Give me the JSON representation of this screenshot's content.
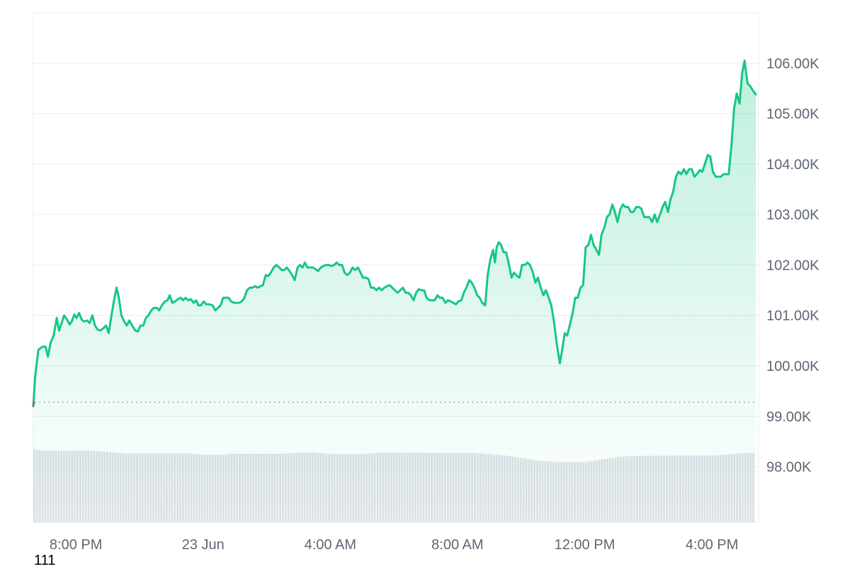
{
  "chart_data": {
    "type": "area",
    "x_ticks": [
      "8:00 PM",
      "23 Jun",
      "4:00 AM",
      "8:00 AM",
      "12:00 PM",
      "4:00 PM"
    ],
    "y_ticks": [
      "98.00K",
      "99.00K",
      "100.00K",
      "101.00K",
      "102.00K",
      "103.00K",
      "104.00K",
      "105.00K",
      "106.00K"
    ],
    "ylim": [
      96.9,
      107.0
    ],
    "baseline": 99.28,
    "grid": true,
    "colors": {
      "line": "#16c784",
      "line_below_baseline": "#ea3943",
      "fill": "#16c784",
      "volume": "#dde1e7",
      "grid": "#e8ebef",
      "baseline": "#8a919e"
    },
    "series": [
      {
        "values": [
          [
            18.66,
            99.2
          ],
          [
            18.72,
            99.8
          ],
          [
            18.82,
            100.32
          ],
          [
            18.95,
            100.38
          ],
          [
            19.05,
            100.38
          ],
          [
            19.12,
            100.18
          ],
          [
            19.2,
            100.45
          ],
          [
            19.3,
            100.6
          ],
          [
            19.4,
            100.95
          ],
          [
            19.47,
            100.7
          ],
          [
            19.55,
            100.85
          ],
          [
            19.63,
            101.0
          ],
          [
            19.72,
            100.92
          ],
          [
            19.8,
            100.82
          ],
          [
            19.87,
            100.88
          ],
          [
            19.95,
            101.02
          ],
          [
            20.02,
            100.95
          ],
          [
            20.1,
            101.05
          ],
          [
            20.18,
            100.92
          ],
          [
            20.25,
            100.88
          ],
          [
            20.35,
            100.9
          ],
          [
            20.43,
            100.85
          ],
          [
            20.52,
            101.0
          ],
          [
            20.6,
            100.8
          ],
          [
            20.68,
            100.72
          ],
          [
            20.77,
            100.7
          ],
          [
            20.87,
            100.75
          ],
          [
            20.95,
            100.8
          ],
          [
            21.03,
            100.65
          ],
          [
            21.12,
            101.0
          ],
          [
            21.2,
            101.3
          ],
          [
            21.28,
            101.55
          ],
          [
            21.35,
            101.35
          ],
          [
            21.43,
            101.0
          ],
          [
            21.52,
            100.88
          ],
          [
            21.6,
            100.8
          ],
          [
            21.68,
            100.9
          ],
          [
            21.77,
            100.8
          ],
          [
            21.87,
            100.7
          ],
          [
            21.95,
            100.68
          ],
          [
            22.03,
            100.8
          ],
          [
            22.12,
            100.8
          ],
          [
            22.2,
            100.95
          ],
          [
            22.28,
            101.0
          ],
          [
            22.37,
            101.1
          ],
          [
            22.45,
            101.15
          ],
          [
            22.55,
            101.15
          ],
          [
            22.62,
            101.1
          ],
          [
            22.7,
            101.2
          ],
          [
            22.8,
            101.28
          ],
          [
            22.88,
            101.3
          ],
          [
            22.95,
            101.4
          ],
          [
            23.03,
            101.25
          ],
          [
            23.12,
            101.28
          ],
          [
            23.2,
            101.32
          ],
          [
            23.3,
            101.35
          ],
          [
            23.37,
            101.3
          ],
          [
            23.45,
            101.35
          ],
          [
            23.53,
            101.3
          ],
          [
            23.62,
            101.32
          ],
          [
            23.7,
            101.25
          ],
          [
            23.78,
            101.3
          ],
          [
            23.85,
            101.2
          ],
          [
            23.93,
            101.2
          ],
          [
            24.02,
            101.28
          ],
          [
            24.1,
            101.22
          ],
          [
            24.2,
            101.22
          ],
          [
            24.3,
            101.2
          ],
          [
            24.38,
            101.1
          ],
          [
            24.47,
            101.15
          ],
          [
            24.55,
            101.2
          ],
          [
            24.63,
            101.35
          ],
          [
            24.72,
            101.35
          ],
          [
            24.8,
            101.35
          ],
          [
            24.88,
            101.28
          ],
          [
            24.97,
            101.25
          ],
          [
            25.05,
            101.25
          ],
          [
            25.13,
            101.25
          ],
          [
            25.22,
            101.28
          ],
          [
            25.3,
            101.35
          ],
          [
            25.38,
            101.5
          ],
          [
            25.47,
            101.55
          ],
          [
            25.55,
            101.55
          ],
          [
            25.63,
            101.58
          ],
          [
            25.72,
            101.55
          ],
          [
            25.8,
            101.58
          ],
          [
            25.88,
            101.6
          ],
          [
            25.97,
            101.8
          ],
          [
            26.05,
            101.78
          ],
          [
            26.13,
            101.85
          ],
          [
            26.22,
            101.95
          ],
          [
            26.3,
            102.0
          ],
          [
            26.4,
            101.95
          ],
          [
            26.47,
            101.9
          ],
          [
            26.55,
            101.9
          ],
          [
            26.63,
            101.95
          ],
          [
            26.72,
            101.88
          ],
          [
            26.8,
            101.8
          ],
          [
            26.88,
            101.7
          ],
          [
            26.97,
            101.95
          ],
          [
            27.05,
            102.0
          ],
          [
            27.13,
            101.95
          ],
          [
            27.2,
            102.05
          ],
          [
            27.28,
            101.95
          ],
          [
            27.37,
            101.95
          ],
          [
            27.45,
            101.95
          ],
          [
            27.53,
            101.92
          ],
          [
            27.62,
            101.88
          ],
          [
            27.7,
            101.95
          ],
          [
            27.78,
            101.98
          ],
          [
            27.87,
            102.0
          ],
          [
            27.95,
            102.0
          ],
          [
            28.03,
            101.98
          ],
          [
            28.12,
            102.0
          ],
          [
            28.2,
            102.05
          ],
          [
            28.28,
            102.0
          ],
          [
            28.37,
            102.0
          ],
          [
            28.45,
            101.85
          ],
          [
            28.53,
            101.8
          ],
          [
            28.62,
            101.85
          ],
          [
            28.7,
            101.95
          ],
          [
            28.78,
            101.9
          ],
          [
            28.87,
            101.95
          ],
          [
            28.95,
            101.85
          ],
          [
            29.03,
            101.75
          ],
          [
            29.12,
            101.75
          ],
          [
            29.2,
            101.72
          ],
          [
            29.28,
            101.55
          ],
          [
            29.37,
            101.55
          ],
          [
            29.45,
            101.5
          ],
          [
            29.53,
            101.55
          ],
          [
            29.62,
            101.5
          ],
          [
            29.7,
            101.55
          ],
          [
            29.78,
            101.58
          ],
          [
            29.87,
            101.6
          ],
          [
            29.95,
            101.55
          ],
          [
            30.03,
            101.5
          ],
          [
            30.12,
            101.45
          ],
          [
            30.2,
            101.5
          ],
          [
            30.28,
            101.55
          ],
          [
            30.37,
            101.45
          ],
          [
            30.45,
            101.45
          ],
          [
            30.53,
            101.4
          ],
          [
            30.62,
            101.3
          ],
          [
            30.7,
            101.45
          ],
          [
            30.78,
            101.52
          ],
          [
            30.87,
            101.5
          ],
          [
            30.95,
            101.5
          ],
          [
            31.03,
            101.35
          ],
          [
            31.12,
            101.3
          ],
          [
            31.2,
            101.3
          ],
          [
            31.28,
            101.3
          ],
          [
            31.37,
            101.4
          ],
          [
            31.45,
            101.35
          ],
          [
            31.53,
            101.35
          ],
          [
            31.62,
            101.25
          ],
          [
            31.7,
            101.3
          ],
          [
            31.78,
            101.28
          ],
          [
            31.87,
            101.25
          ],
          [
            31.95,
            101.22
          ],
          [
            32.03,
            101.28
          ],
          [
            32.12,
            101.3
          ],
          [
            32.2,
            101.45
          ],
          [
            32.28,
            101.55
          ],
          [
            32.37,
            101.7
          ],
          [
            32.45,
            101.65
          ],
          [
            32.53,
            101.55
          ],
          [
            32.62,
            101.4
          ],
          [
            32.7,
            101.35
          ],
          [
            32.78,
            101.25
          ],
          [
            32.87,
            101.2
          ],
          [
            32.95,
            101.8
          ],
          [
            33.03,
            102.1
          ],
          [
            33.12,
            102.3
          ],
          [
            33.18,
            102.05
          ],
          [
            33.23,
            102.35
          ],
          [
            33.3,
            102.45
          ],
          [
            33.37,
            102.4
          ],
          [
            33.45,
            102.25
          ],
          [
            33.53,
            102.25
          ],
          [
            33.62,
            102.0
          ],
          [
            33.7,
            101.75
          ],
          [
            33.78,
            101.85
          ],
          [
            33.87,
            101.78
          ],
          [
            33.95,
            101.75
          ],
          [
            34.03,
            102.0
          ],
          [
            34.12,
            102.0
          ],
          [
            34.2,
            102.05
          ],
          [
            34.28,
            102.0
          ],
          [
            34.37,
            101.85
          ],
          [
            34.45,
            101.65
          ],
          [
            34.53,
            101.75
          ],
          [
            34.62,
            101.55
          ],
          [
            34.7,
            101.4
          ],
          [
            34.78,
            101.5
          ],
          [
            34.87,
            101.35
          ],
          [
            34.95,
            101.2
          ],
          [
            35.03,
            100.9
          ],
          [
            35.12,
            100.45
          ],
          [
            35.22,
            100.05
          ],
          [
            35.3,
            100.35
          ],
          [
            35.37,
            100.65
          ],
          [
            35.45,
            100.6
          ],
          [
            35.55,
            100.85
          ],
          [
            35.62,
            101.05
          ],
          [
            35.7,
            101.35
          ],
          [
            35.78,
            101.35
          ],
          [
            35.87,
            101.55
          ],
          [
            35.95,
            101.6
          ],
          [
            36.03,
            102.35
          ],
          [
            36.12,
            102.4
          ],
          [
            36.2,
            102.6
          ],
          [
            36.28,
            102.4
          ],
          [
            36.37,
            102.3
          ],
          [
            36.45,
            102.2
          ],
          [
            36.53,
            102.6
          ],
          [
            36.62,
            102.75
          ],
          [
            36.7,
            102.95
          ],
          [
            36.78,
            103.0
          ],
          [
            36.87,
            103.2
          ],
          [
            36.95,
            103.05
          ],
          [
            37.03,
            102.85
          ],
          [
            37.12,
            103.1
          ],
          [
            37.2,
            103.2
          ],
          [
            37.28,
            103.15
          ],
          [
            37.37,
            103.15
          ],
          [
            37.45,
            103.05
          ],
          [
            37.53,
            103.05
          ],
          [
            37.62,
            103.15
          ],
          [
            37.7,
            103.15
          ],
          [
            37.78,
            103.12
          ],
          [
            37.87,
            102.95
          ],
          [
            37.95,
            102.95
          ],
          [
            38.03,
            102.95
          ],
          [
            38.12,
            102.85
          ],
          [
            38.2,
            103.0
          ],
          [
            38.28,
            102.85
          ],
          [
            38.37,
            103.0
          ],
          [
            38.45,
            103.15
          ],
          [
            38.53,
            103.25
          ],
          [
            38.62,
            103.05
          ],
          [
            38.7,
            103.3
          ],
          [
            38.78,
            103.45
          ],
          [
            38.87,
            103.75
          ],
          [
            38.95,
            103.85
          ],
          [
            39.03,
            103.8
          ],
          [
            39.12,
            103.9
          ],
          [
            39.2,
            103.8
          ],
          [
            39.28,
            103.9
          ],
          [
            39.37,
            103.9
          ],
          [
            39.45,
            103.75
          ],
          [
            39.53,
            103.8
          ],
          [
            39.62,
            103.88
          ],
          [
            39.7,
            103.85
          ],
          [
            39.78,
            104.0
          ],
          [
            39.87,
            104.18
          ],
          [
            39.95,
            104.15
          ],
          [
            40.03,
            103.85
          ],
          [
            40.12,
            103.75
          ],
          [
            40.2,
            103.75
          ],
          [
            40.28,
            103.75
          ],
          [
            40.37,
            103.8
          ],
          [
            40.45,
            103.8
          ],
          [
            40.53,
            103.8
          ],
          [
            40.62,
            104.4
          ],
          [
            40.7,
            105.1
          ],
          [
            40.78,
            105.4
          ],
          [
            40.87,
            105.2
          ],
          [
            40.95,
            105.8
          ],
          [
            41.03,
            106.05
          ],
          [
            41.12,
            105.6
          ],
          [
            41.2,
            105.55
          ],
          [
            41.3,
            105.45
          ],
          [
            41.38,
            105.38
          ]
        ]
      }
    ],
    "volume": [
      [
        18.66,
        0.57
      ],
      [
        19.0,
        0.56
      ],
      [
        19.5,
        0.56
      ],
      [
        20.0,
        0.56
      ],
      [
        20.5,
        0.56
      ],
      [
        21.0,
        0.55
      ],
      [
        21.5,
        0.54
      ],
      [
        22.0,
        0.54
      ],
      [
        22.5,
        0.54
      ],
      [
        23.0,
        0.54
      ],
      [
        23.5,
        0.54
      ],
      [
        24.0,
        0.53
      ],
      [
        24.5,
        0.53
      ],
      [
        25.0,
        0.54
      ],
      [
        25.5,
        0.54
      ],
      [
        26.0,
        0.54
      ],
      [
        26.5,
        0.54
      ],
      [
        27.0,
        0.55
      ],
      [
        27.5,
        0.55
      ],
      [
        28.0,
        0.54
      ],
      [
        28.5,
        0.54
      ],
      [
        29.0,
        0.54
      ],
      [
        29.5,
        0.55
      ],
      [
        30.0,
        0.55
      ],
      [
        30.5,
        0.55
      ],
      [
        31.0,
        0.55
      ],
      [
        31.5,
        0.55
      ],
      [
        32.0,
        0.55
      ],
      [
        32.5,
        0.55
      ],
      [
        33.0,
        0.54
      ],
      [
        33.5,
        0.53
      ],
      [
        34.0,
        0.51
      ],
      [
        34.5,
        0.49
      ],
      [
        35.0,
        0.48
      ],
      [
        35.5,
        0.48
      ],
      [
        36.0,
        0.48
      ],
      [
        36.5,
        0.5
      ],
      [
        37.0,
        0.52
      ],
      [
        37.5,
        0.53
      ],
      [
        38.0,
        0.53
      ],
      [
        38.5,
        0.53
      ],
      [
        39.0,
        0.53
      ],
      [
        39.5,
        0.53
      ],
      [
        40.0,
        0.53
      ],
      [
        40.5,
        0.54
      ],
      [
        41.0,
        0.55
      ]
    ]
  },
  "footnote": "111"
}
